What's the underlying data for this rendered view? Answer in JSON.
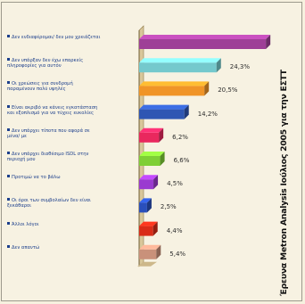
{
  "source_note": "Έρευνα Metron Analysis Ιούλιος 2005 για την ΕΣΤΤ",
  "chart_data": {
    "type": "bar",
    "orientation": "horizontal",
    "bar_style": "3d",
    "title": "",
    "xlabel": "",
    "ylabel": "",
    "grid": false,
    "legend": "none",
    "xlim": [
      0,
      42
    ],
    "categories": [
      "Δεν ενδιαφέρομαι/ δεν μου χρειάζεται",
      "Δεν υπάρξαν δεν έχω επαρκείς πληροφορίες για αυτόν",
      "Οι χρεώσεις για συνδρομή παραμένουν πολύ υψηλές",
      "Είναι ακριβό να κάνεις εγκατάσταση και εξοπλισμό για να τύχεις ευκολίες",
      "Δεν υπάρχει τίποτα που αφορά σε μένα/ με",
      "Δεν υπάρχει διαθέσιμο ISDL στην περιοχή μου",
      "Προτιμώ να το βάλω",
      "Οι όροι των συμβολαίων δεν είναι ξεκάθαροι",
      "Άλλοι λόγοι",
      "Δεν απαντώ"
    ],
    "values": [
      39.8,
      24.3,
      20.5,
      14.2,
      6.2,
      6.6,
      4.5,
      2.5,
      4.4,
      5.4
    ],
    "value_labels": [
      "",
      "24,3%",
      "20,5%",
      "14,2%",
      "6,2%",
      "6,6%",
      "4,5%",
      "2,5%",
      "4,4%",
      "5,4%"
    ],
    "colors": [
      "#9e3f97",
      "#74c9cd",
      "#f09427",
      "#2f56b3",
      "#e9285e",
      "#7fcf36",
      "#9a3ad0",
      "#2a4fbb",
      "#d92c18",
      "#c9917a"
    ]
  }
}
